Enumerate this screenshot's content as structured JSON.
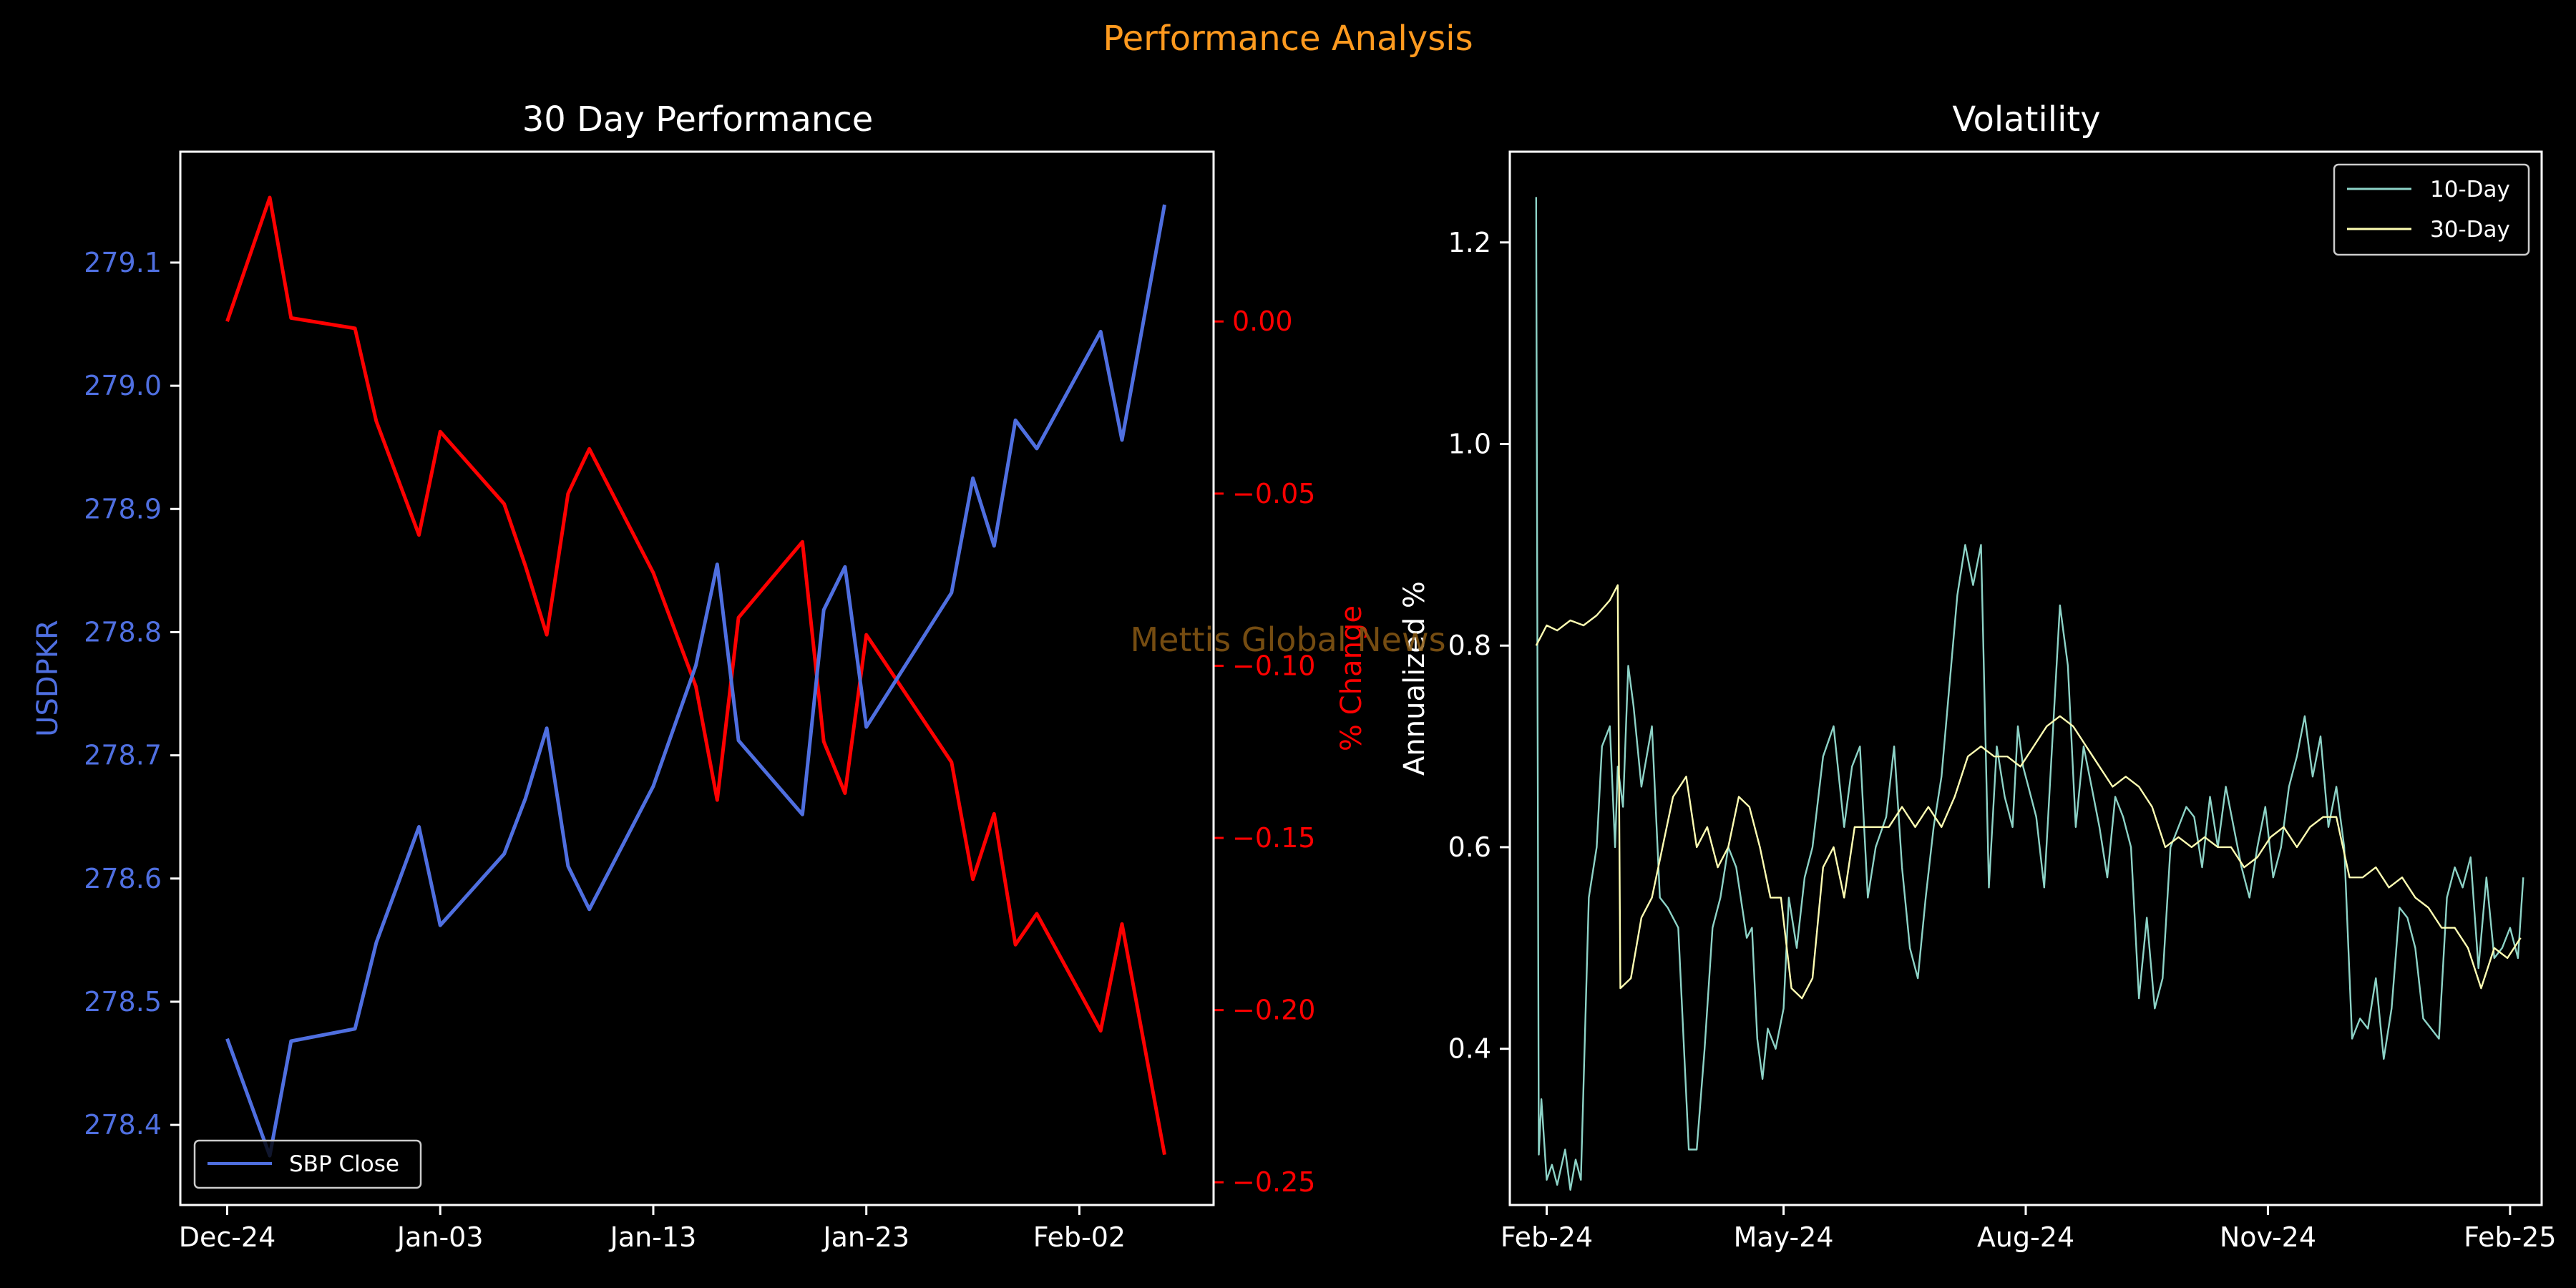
{
  "suptitle": "Performance Analysis",
  "watermark": "Mettis Global News",
  "colors": {
    "background": "#000000",
    "suptitle": "#ff9a1f",
    "price": "#4f6fe0",
    "pct": "#ff0000",
    "vol10": "#8dd3c7",
    "vol30": "#ffffb3",
    "axis": "#ffffff"
  },
  "chart_data": [
    {
      "type": "line",
      "title": "30 Day Performance",
      "xlabel": "",
      "ylabel": "USDPKR",
      "ylabel_right": "% Change",
      "x_tick_labels": [
        "Dec-24",
        "Jan-03",
        "Jan-13",
        "Jan-23",
        "Feb-02"
      ],
      "x_tick_values": [
        0,
        10,
        20,
        30,
        40
      ],
      "xlim": [
        -2.2,
        46.3
      ],
      "ylim": [
        278.335,
        279.19
      ],
      "y_ticks": [
        278.4,
        278.5,
        278.6,
        278.7,
        278.8,
        278.9,
        279.0,
        279.1
      ],
      "y2lim": [
        -0.2566,
        0.0493
      ],
      "y2_ticks": [
        -0.25,
        -0.2,
        -0.15,
        -0.1,
        -0.05,
        0.0
      ],
      "y2_tick_labels": [
        "−0.25",
        "−0.20",
        "−0.15",
        "−0.10",
        "−0.05",
        "0.00"
      ],
      "legend": {
        "position": "lower-left",
        "entries": [
          "SBP Close"
        ]
      },
      "series": [
        {
          "name": "SBP Close",
          "axis": "left",
          "x": [
            0,
            2,
            3,
            6,
            7,
            9,
            10,
            13,
            14,
            15,
            16,
            17,
            20,
            22,
            23,
            24,
            27,
            28,
            29,
            30,
            34,
            35,
            36,
            37,
            38,
            41,
            42,
            44
          ],
          "values": [
            278.47,
            278.375,
            278.468,
            278.478,
            278.548,
            278.642,
            278.562,
            278.62,
            278.665,
            278.722,
            278.61,
            278.575,
            278.675,
            278.773,
            278.855,
            278.712,
            278.652,
            278.818,
            278.853,
            278.723,
            278.832,
            278.925,
            278.87,
            278.972,
            278.949,
            279.044,
            278.956,
            279.147
          ]
        },
        {
          "name": "% Change",
          "axis": "right",
          "x": [
            0,
            2,
            3,
            6,
            7,
            9,
            10,
            13,
            14,
            15,
            16,
            17,
            20,
            22,
            23,
            24,
            27,
            28,
            29,
            30,
            34,
            35,
            36,
            37,
            38,
            41,
            42,
            44
          ],
          "values": [
            0.0,
            0.036,
            0.001,
            -0.002,
            -0.029,
            -0.062,
            -0.032,
            -0.053,
            -0.071,
            -0.091,
            -0.05,
            -0.037,
            -0.073,
            -0.106,
            -0.139,
            -0.086,
            -0.064,
            -0.122,
            -0.137,
            -0.091,
            -0.128,
            -0.162,
            -0.143,
            -0.181,
            -0.172,
            -0.206,
            -0.175,
            -0.242
          ]
        }
      ]
    },
    {
      "type": "line",
      "title": "Volatility",
      "xlabel": "",
      "ylabel": "Annualized %",
      "x_tick_labels": [
        "Feb-24",
        "May-24",
        "Aug-24",
        "Nov-24",
        "Feb-25"
      ],
      "x_tick_values": [
        "2024-02-01",
        "2024-05-01",
        "2024-08-01",
        "2024-11-01",
        "2025-02-01"
      ],
      "xlim": [
        "2024-01-18",
        "2025-02-13"
      ],
      "ylim": [
        0.245,
        1.29
      ],
      "y_ticks": [
        0.4,
        0.6,
        0.8,
        1.0,
        1.2
      ],
      "legend": {
        "position": "top-right",
        "entries": [
          "10-Day",
          "30-Day"
        ]
      },
      "series": [
        {
          "name": "10-Day",
          "x": [
            "2024-01-28",
            "2024-01-29",
            "2024-01-30",
            "2024-02-01",
            "2024-02-03",
            "2024-02-05",
            "2024-02-08",
            "2024-02-10",
            "2024-02-12",
            "2024-02-14",
            "2024-02-17",
            "2024-02-20",
            "2024-02-22",
            "2024-02-25",
            "2024-02-27",
            "2024-02-28",
            "2024-03-01",
            "2024-03-03",
            "2024-03-05",
            "2024-03-08",
            "2024-03-12",
            "2024-03-15",
            "2024-03-18",
            "2024-03-22",
            "2024-03-26",
            "2024-03-29",
            "2024-04-01",
            "2024-04-04",
            "2024-04-07",
            "2024-04-10",
            "2024-04-13",
            "2024-04-17",
            "2024-04-19",
            "2024-04-21",
            "2024-04-23",
            "2024-04-25",
            "2024-04-28",
            "2024-05-01",
            "2024-05-03",
            "2024-05-06",
            "2024-05-09",
            "2024-05-12",
            "2024-05-16",
            "2024-05-20",
            "2024-05-24",
            "2024-05-27",
            "2024-05-30",
            "2024-06-02",
            "2024-06-05",
            "2024-06-09",
            "2024-06-12",
            "2024-06-15",
            "2024-06-18",
            "2024-06-21",
            "2024-06-24",
            "2024-06-27",
            "2024-06-30",
            "2024-07-03",
            "2024-07-06",
            "2024-07-09",
            "2024-07-12",
            "2024-07-15",
            "2024-07-18",
            "2024-07-21",
            "2024-07-24",
            "2024-07-27",
            "2024-07-29",
            "2024-07-31",
            "2024-08-02",
            "2024-08-05",
            "2024-08-08",
            "2024-08-11",
            "2024-08-14",
            "2024-08-17",
            "2024-08-20",
            "2024-08-23",
            "2024-08-26",
            "2024-08-29",
            "2024-09-01",
            "2024-09-04",
            "2024-09-07",
            "2024-09-10",
            "2024-09-13",
            "2024-09-16",
            "2024-09-19",
            "2024-09-22",
            "2024-09-25",
            "2024-09-28",
            "2024-10-01",
            "2024-10-04",
            "2024-10-07",
            "2024-10-10",
            "2024-10-13",
            "2024-10-16",
            "2024-10-19",
            "2024-10-22",
            "2024-10-25",
            "2024-10-28",
            "2024-10-31",
            "2024-11-03",
            "2024-11-06",
            "2024-11-09",
            "2024-11-12",
            "2024-11-15",
            "2024-11-18",
            "2024-11-21",
            "2024-11-24",
            "2024-11-27",
            "2024-11-30",
            "2024-12-03",
            "2024-12-06",
            "2024-12-09",
            "2024-12-12",
            "2024-12-15",
            "2024-12-18",
            "2024-12-21",
            "2024-12-24",
            "2024-12-27",
            "2024-12-30",
            "2025-01-02",
            "2025-01-05",
            "2025-01-08",
            "2025-01-11",
            "2025-01-14",
            "2025-01-17",
            "2025-01-20",
            "2025-01-23",
            "2025-01-26",
            "2025-01-29",
            "2025-02-01",
            "2025-02-04",
            "2025-02-06"
          ],
          "values": [
            1.245,
            0.295,
            0.35,
            0.27,
            0.285,
            0.265,
            0.3,
            0.26,
            0.29,
            0.27,
            0.55,
            0.6,
            0.7,
            0.72,
            0.6,
            0.68,
            0.64,
            0.78,
            0.74,
            0.66,
            0.72,
            0.55,
            0.54,
            0.52,
            0.3,
            0.3,
            0.4,
            0.52,
            0.55,
            0.6,
            0.58,
            0.51,
            0.52,
            0.41,
            0.37,
            0.42,
            0.4,
            0.44,
            0.55,
            0.5,
            0.57,
            0.6,
            0.69,
            0.72,
            0.62,
            0.68,
            0.7,
            0.55,
            0.6,
            0.63,
            0.7,
            0.58,
            0.5,
            0.47,
            0.55,
            0.62,
            0.67,
            0.76,
            0.85,
            0.9,
            0.86,
            0.9,
            0.56,
            0.7,
            0.65,
            0.62,
            0.72,
            0.68,
            0.66,
            0.63,
            0.56,
            0.7,
            0.84,
            0.78,
            0.62,
            0.7,
            0.66,
            0.62,
            0.57,
            0.65,
            0.63,
            0.6,
            0.45,
            0.53,
            0.44,
            0.47,
            0.6,
            0.62,
            0.64,
            0.63,
            0.58,
            0.65,
            0.6,
            0.66,
            0.62,
            0.58,
            0.55,
            0.6,
            0.64,
            0.57,
            0.6,
            0.66,
            0.69,
            0.73,
            0.67,
            0.71,
            0.62,
            0.66,
            0.6,
            0.41,
            0.43,
            0.42,
            0.47,
            0.39,
            0.44,
            0.54,
            0.53,
            0.5,
            0.43,
            0.42,
            0.41,
            0.55,
            0.58,
            0.56,
            0.59,
            0.48,
            0.57,
            0.49,
            0.5,
            0.52,
            0.49,
            0.57
          ]
        },
        {
          "name": "30-Day",
          "x": [
            "2024-01-28",
            "2024-02-01",
            "2024-02-05",
            "2024-02-10",
            "2024-02-15",
            "2024-02-20",
            "2024-02-25",
            "2024-02-28",
            "2024-02-29",
            "2024-03-04",
            "2024-03-08",
            "2024-03-12",
            "2024-03-16",
            "2024-03-20",
            "2024-03-25",
            "2024-03-29",
            "2024-04-02",
            "2024-04-06",
            "2024-04-10",
            "2024-04-14",
            "2024-04-18",
            "2024-04-22",
            "2024-04-26",
            "2024-04-30",
            "2024-05-04",
            "2024-05-08",
            "2024-05-12",
            "2024-05-16",
            "2024-05-20",
            "2024-05-24",
            "2024-05-28",
            "2024-06-01",
            "2024-06-05",
            "2024-06-10",
            "2024-06-15",
            "2024-06-20",
            "2024-06-25",
            "2024-06-30",
            "2024-07-05",
            "2024-07-10",
            "2024-07-15",
            "2024-07-20",
            "2024-07-25",
            "2024-07-30",
            "2024-08-04",
            "2024-08-09",
            "2024-08-14",
            "2024-08-19",
            "2024-08-24",
            "2024-08-29",
            "2024-09-03",
            "2024-09-08",
            "2024-09-13",
            "2024-09-18",
            "2024-09-23",
            "2024-09-28",
            "2024-10-03",
            "2024-10-08",
            "2024-10-13",
            "2024-10-18",
            "2024-10-23",
            "2024-10-28",
            "2024-11-02",
            "2024-11-07",
            "2024-11-12",
            "2024-11-17",
            "2024-11-22",
            "2024-11-27",
            "2024-12-02",
            "2024-12-07",
            "2024-12-12",
            "2024-12-17",
            "2024-12-22",
            "2024-12-27",
            "2025-01-01",
            "2025-01-06",
            "2025-01-11",
            "2025-01-16",
            "2025-01-21",
            "2025-01-26",
            "2025-01-31",
            "2025-02-05"
          ],
          "values": [
            0.8,
            0.82,
            0.815,
            0.825,
            0.82,
            0.83,
            0.845,
            0.86,
            0.46,
            0.47,
            0.53,
            0.55,
            0.6,
            0.65,
            0.67,
            0.6,
            0.62,
            0.58,
            0.6,
            0.65,
            0.64,
            0.6,
            0.55,
            0.55,
            0.46,
            0.45,
            0.47,
            0.58,
            0.6,
            0.55,
            0.62,
            0.62,
            0.62,
            0.62,
            0.64,
            0.62,
            0.64,
            0.62,
            0.65,
            0.69,
            0.7,
            0.69,
            0.69,
            0.68,
            0.7,
            0.72,
            0.73,
            0.72,
            0.7,
            0.68,
            0.66,
            0.67,
            0.66,
            0.64,
            0.6,
            0.61,
            0.6,
            0.61,
            0.6,
            0.6,
            0.58,
            0.59,
            0.61,
            0.62,
            0.6,
            0.62,
            0.63,
            0.63,
            0.57,
            0.57,
            0.58,
            0.56,
            0.57,
            0.55,
            0.54,
            0.52,
            0.52,
            0.5,
            0.46,
            0.5,
            0.49,
            0.51
          ]
        }
      ]
    }
  ]
}
